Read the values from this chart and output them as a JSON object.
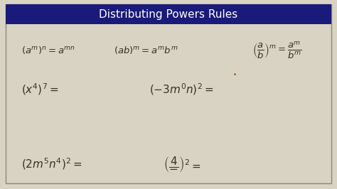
{
  "title": "Distributing Powers Rules",
  "title_bg": "#1a1a7a",
  "title_color": "#ffffff",
  "bg_color": "#d9d3c3",
  "border_color": "#888877",
  "text_color": "#3a3020",
  "rule1": "$(a^m)^n = a^{mn}$",
  "rule2": "$(ab)^m = a^m b^m$",
  "rule3": "$\\left(\\dfrac{a}{b}\\right)^m = \\dfrac{a^m}{b^m}$",
  "prob1": "$(x^4)^7 =$",
  "prob2": "$(-3m^0 n)^2 =$",
  "prob3": "$(2m^5 n^4)^2 =$",
  "prob4": "$\\left(\\dfrac{4}{-}\\right)^2 =$",
  "title_fontsize": 11,
  "rule_fontsize": 9.5,
  "prob_fontsize": 11
}
